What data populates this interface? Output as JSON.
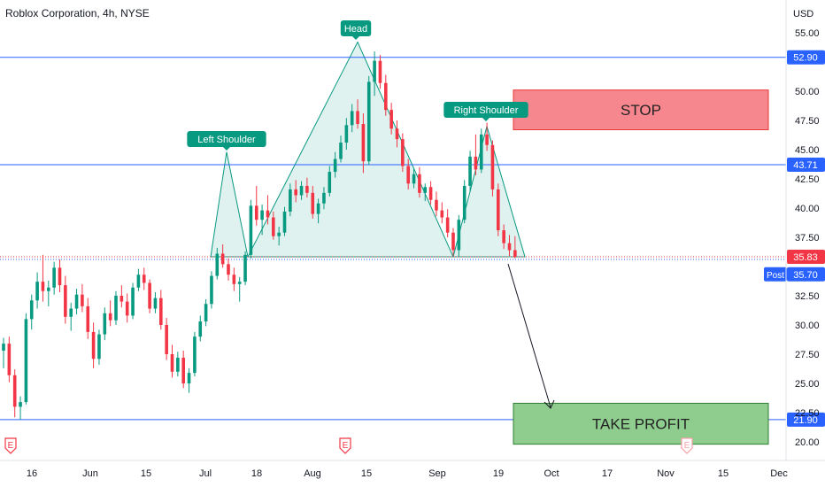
{
  "chart_data": {
    "type": "candlestick",
    "title": "Roblox Corporation, 4h, NYSE",
    "currency": "USD",
    "y_ticks": [
      "55.00",
      "50.00",
      "47.50",
      "45.00",
      "42.50",
      "40.00",
      "37.50",
      "32.50",
      "30.00",
      "27.50",
      "25.00",
      "22.50",
      "20.00"
    ],
    "x_ticks": [
      "16",
      "Jun",
      "15",
      "Jul",
      "18",
      "Aug",
      "15",
      "Sep",
      "19",
      "Oct",
      "17",
      "Nov",
      "15",
      "Dec"
    ],
    "levels": [
      {
        "value": 52.9,
        "label": "52.90",
        "color": "#2962ff"
      },
      {
        "value": 43.71,
        "label": "43.71",
        "color": "#2962ff"
      },
      {
        "value": 21.9,
        "label": "21.90",
        "color": "#2962ff"
      }
    ],
    "last_price": {
      "value": 35.83,
      "label": "35.83",
      "color": "#f23645"
    },
    "post_price": {
      "value": 35.7,
      "label": "35.70",
      "tag": "Post",
      "color": "#2962ff"
    },
    "neckline": 35.83,
    "pattern_labels": [
      {
        "text": "Left Shoulder",
        "price": 44.8
      },
      {
        "text": "Head",
        "price": 54.5
      },
      {
        "text": "Right Shoulder",
        "price": 47.2
      }
    ],
    "zones": [
      {
        "text": "STOP",
        "top": 50.1,
        "bottom": 46.7,
        "fill": "#f7878e",
        "stroke": "#e53935"
      },
      {
        "text": "TAKE PROFIT",
        "top": 23.3,
        "bottom": 19.8,
        "fill": "#8fcd8f",
        "stroke": "#2e7d32"
      }
    ],
    "earnings_markers": [
      "E",
      "E",
      "E"
    ],
    "ohlc": [
      [
        27.8,
        28.9,
        26.3,
        28.4
      ],
      [
        28.4,
        29.0,
        25.1,
        25.7
      ],
      [
        25.7,
        26.2,
        22.1,
        23.0
      ],
      [
        23.0,
        23.9,
        21.9,
        23.4
      ],
      [
        23.4,
        31.0,
        23.2,
        30.5
      ],
      [
        30.5,
        32.6,
        29.6,
        32.1
      ],
      [
        32.1,
        34.5,
        31.4,
        33.7
      ],
      [
        33.7,
        36.0,
        32.0,
        32.9
      ],
      [
        32.9,
        33.8,
        31.6,
        33.2
      ],
      [
        33.2,
        35.4,
        32.6,
        34.9
      ],
      [
        34.9,
        35.6,
        32.8,
        33.4
      ],
      [
        33.4,
        34.2,
        30.1,
        30.7
      ],
      [
        30.7,
        31.9,
        29.5,
        31.4
      ],
      [
        31.4,
        33.1,
        30.9,
        32.6
      ],
      [
        32.6,
        33.5,
        31.1,
        31.6
      ],
      [
        31.6,
        32.3,
        28.8,
        29.4
      ],
      [
        29.4,
        30.2,
        26.3,
        27.1
      ],
      [
        27.1,
        29.6,
        26.6,
        29.2
      ],
      [
        29.2,
        31.5,
        28.7,
        31.0
      ],
      [
        31.0,
        32.1,
        29.9,
        30.4
      ],
      [
        30.4,
        32.9,
        30.0,
        32.5
      ],
      [
        32.5,
        33.4,
        31.5,
        32.0
      ],
      [
        32.0,
        32.7,
        30.2,
        30.8
      ],
      [
        30.8,
        33.6,
        30.5,
        33.2
      ],
      [
        33.2,
        34.8,
        32.9,
        34.3
      ],
      [
        34.3,
        34.9,
        33.0,
        33.6
      ],
      [
        33.6,
        33.9,
        31.0,
        31.4
      ],
      [
        31.4,
        32.8,
        31.0,
        32.3
      ],
      [
        32.3,
        33.0,
        29.6,
        30.0
      ],
      [
        30.0,
        30.6,
        27.0,
        27.5
      ],
      [
        27.5,
        28.3,
        25.5,
        26.0
      ],
      [
        26.0,
        27.7,
        25.6,
        27.2
      ],
      [
        27.2,
        27.8,
        24.6,
        25.0
      ],
      [
        25.0,
        26.3,
        24.2,
        25.9
      ],
      [
        25.9,
        29.4,
        25.6,
        29.0
      ],
      [
        29.0,
        30.8,
        28.6,
        30.3
      ],
      [
        30.3,
        32.2,
        29.9,
        31.8
      ],
      [
        31.8,
        34.6,
        31.4,
        34.2
      ],
      [
        34.2,
        36.6,
        33.9,
        36.1
      ],
      [
        36.1,
        36.9,
        34.9,
        35.2
      ],
      [
        35.2,
        35.7,
        33.8,
        34.3
      ],
      [
        34.3,
        34.9,
        32.9,
        33.5
      ],
      [
        33.5,
        34.1,
        32.0,
        33.7
      ],
      [
        33.7,
        36.3,
        33.4,
        36.0
      ],
      [
        36.0,
        40.7,
        35.7,
        40.2
      ],
      [
        40.2,
        41.9,
        38.5,
        39.0
      ],
      [
        39.0,
        40.3,
        37.7,
        39.8
      ],
      [
        39.8,
        41.1,
        38.6,
        39.2
      ],
      [
        39.2,
        39.7,
        37.3,
        37.6
      ],
      [
        37.6,
        38.4,
        36.8,
        37.9
      ],
      [
        37.9,
        40.1,
        37.6,
        39.7
      ],
      [
        39.7,
        42.1,
        39.3,
        41.6
      ],
      [
        41.6,
        42.4,
        40.5,
        41.1
      ],
      [
        41.1,
        42.3,
        40.7,
        41.9
      ],
      [
        41.9,
        42.6,
        40.9,
        41.3
      ],
      [
        41.3,
        41.9,
        39.1,
        39.5
      ],
      [
        39.5,
        40.8,
        38.7,
        40.4
      ],
      [
        40.4,
        41.8,
        39.9,
        41.3
      ],
      [
        41.3,
        43.6,
        41.0,
        43.1
      ],
      [
        43.1,
        44.8,
        42.6,
        44.2
      ],
      [
        44.2,
        46.2,
        43.9,
        45.6
      ],
      [
        45.6,
        47.7,
        45.0,
        47.1
      ],
      [
        47.1,
        48.9,
        46.5,
        48.3
      ],
      [
        48.3,
        49.3,
        46.8,
        47.2
      ],
      [
        47.2,
        48.1,
        43.0,
        44.0
      ],
      [
        44.0,
        51.3,
        43.7,
        50.8
      ],
      [
        50.8,
        53.4,
        49.6,
        52.6
      ],
      [
        52.6,
        53.1,
        50.2,
        50.7
      ],
      [
        50.7,
        51.4,
        47.9,
        48.4
      ],
      [
        48.4,
        49.0,
        46.3,
        46.8
      ],
      [
        46.8,
        47.5,
        45.2,
        45.9
      ],
      [
        45.9,
        46.4,
        43.1,
        43.6
      ],
      [
        43.6,
        44.2,
        41.6,
        42.1
      ],
      [
        42.1,
        43.4,
        41.7,
        42.9
      ],
      [
        42.9,
        43.5,
        40.9,
        41.3
      ],
      [
        41.3,
        42.1,
        40.6,
        41.8
      ],
      [
        41.8,
        42.3,
        40.3,
        40.7
      ],
      [
        40.7,
        41.4,
        39.3,
        39.8
      ],
      [
        39.8,
        40.5,
        38.7,
        39.2
      ],
      [
        39.2,
        39.9,
        37.5,
        37.9
      ],
      [
        37.9,
        38.3,
        35.9,
        36.4
      ],
      [
        36.4,
        39.4,
        35.8,
        39.0
      ],
      [
        39.0,
        42.4,
        38.7,
        41.9
      ],
      [
        41.9,
        44.9,
        41.4,
        44.4
      ],
      [
        44.4,
        46.3,
        42.8,
        43.3
      ],
      [
        43.3,
        46.8,
        43.0,
        46.3
      ],
      [
        46.3,
        47.3,
        44.9,
        45.4
      ],
      [
        45.4,
        45.8,
        41.0,
        41.6
      ],
      [
        41.6,
        42.1,
        37.6,
        38.1
      ],
      [
        38.1,
        38.6,
        36.5,
        37.0
      ],
      [
        37.0,
        37.7,
        35.9,
        36.4
      ],
      [
        36.4,
        37.6,
        35.7,
        35.83
      ]
    ]
  }
}
